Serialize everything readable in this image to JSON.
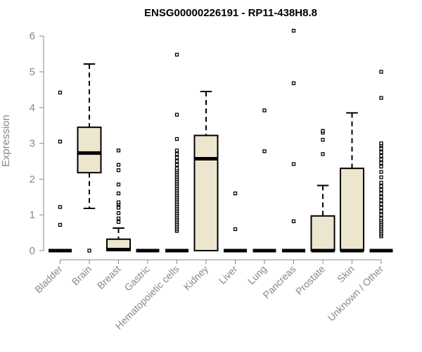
{
  "chart_data": {
    "type": "boxplot",
    "title": "ENSG00000226191 - RP11-438H8.8",
    "xlabel": "",
    "ylabel": "Expression",
    "ylim": [
      0,
      6.2
    ],
    "yticks": [
      0,
      1,
      2,
      3,
      4,
      5,
      6
    ],
    "ytick_labels": [
      "0",
      "1",
      "2",
      "3",
      "4",
      "5",
      "6"
    ],
    "box_fill": "#ede6cf",
    "categories": [
      "Bladder",
      "Brain",
      "Breast",
      "Gastric",
      "Hematopoietic cells",
      "Kidney",
      "Liver",
      "Lung",
      "Pancreas",
      "Prostate",
      "Skin",
      "Unknown / Other"
    ],
    "boxes": [
      {
        "category": "Bladder",
        "q1": 0,
        "median": 0,
        "q3": 0,
        "whisker_low": 0,
        "whisker_high": 0,
        "outliers": [
          0.72,
          1.22,
          3.05,
          4.42
        ]
      },
      {
        "category": "Brain",
        "q1": 2.18,
        "median": 2.73,
        "q3": 3.45,
        "whisker_low": 1.18,
        "whisker_high": 5.22,
        "outliers": [
          0
        ]
      },
      {
        "category": "Breast",
        "q1": 0,
        "median": 0.03,
        "q3": 0.32,
        "whisker_low": 0,
        "whisker_high": 0.63,
        "outliers": [
          0.8,
          0.9,
          1.05,
          1.2,
          1.3,
          1.35,
          1.6,
          1.85,
          2.25,
          2.4,
          2.8
        ]
      },
      {
        "category": "Gastric",
        "q1": 0,
        "median": 0,
        "q3": 0,
        "whisker_low": 0,
        "whisker_high": 0,
        "outliers": []
      },
      {
        "category": "Hematopoietic cells",
        "q1": 0,
        "median": 0,
        "q3": 0,
        "whisker_low": 0,
        "whisker_high": 0,
        "outliers": [
          0.55,
          0.6,
          0.65,
          0.7,
          0.75,
          0.8,
          0.85,
          0.9,
          0.95,
          1.0,
          1.05,
          1.1,
          1.15,
          1.2,
          1.25,
          1.3,
          1.35,
          1.4,
          1.45,
          1.5,
          1.55,
          1.6,
          1.65,
          1.7,
          1.75,
          1.8,
          1.85,
          1.9,
          1.95,
          2.0,
          2.05,
          2.1,
          2.15,
          2.2,
          2.25,
          2.3,
          2.4,
          2.5,
          2.6,
          2.7,
          2.8,
          3.12,
          3.8,
          5.48
        ]
      },
      {
        "category": "Kidney",
        "q1": 0,
        "median": 2.57,
        "q3": 3.22,
        "whisker_low": 0,
        "whisker_high": 4.45,
        "outliers": []
      },
      {
        "category": "Liver",
        "q1": 0,
        "median": 0,
        "q3": 0,
        "whisker_low": 0,
        "whisker_high": 0,
        "outliers": [
          0.6,
          1.6
        ]
      },
      {
        "category": "Lung",
        "q1": 0,
        "median": 0,
        "q3": 0,
        "whisker_low": 0,
        "whisker_high": 0,
        "outliers": [
          2.78,
          3.92
        ]
      },
      {
        "category": "Pancreas",
        "q1": 0,
        "median": 0,
        "q3": 0,
        "whisker_low": 0,
        "whisker_high": 0,
        "outliers": [
          0.82,
          2.42,
          4.68,
          6.15
        ]
      },
      {
        "category": "Prostate",
        "q1": 0,
        "median": 0,
        "q3": 0.97,
        "whisker_low": 0,
        "whisker_high": 1.82,
        "outliers": [
          2.7,
          3.1,
          3.3,
          3.35
        ]
      },
      {
        "category": "Skin",
        "q1": 0,
        "median": 0,
        "q3": 2.3,
        "whisker_low": 0,
        "whisker_high": 3.85,
        "outliers": []
      },
      {
        "category": "Unknown / Other",
        "q1": 0,
        "median": 0,
        "q3": 0,
        "whisker_low": 0,
        "whisker_high": 0,
        "outliers": [
          0.4,
          0.45,
          0.5,
          0.55,
          0.6,
          0.65,
          0.7,
          0.75,
          0.8,
          0.85,
          0.9,
          1.0,
          1.1,
          1.2,
          1.3,
          1.4,
          1.5,
          1.6,
          1.7,
          1.8,
          1.9,
          2.05,
          2.2,
          2.35,
          2.45,
          2.55,
          2.65,
          2.75,
          2.85,
          2.95,
          3.0,
          4.27,
          5.0
        ]
      }
    ]
  }
}
